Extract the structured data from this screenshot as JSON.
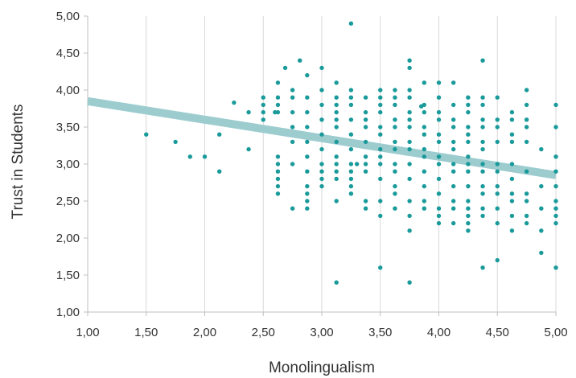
{
  "chart_data": {
    "type": "scatter",
    "title": "",
    "xlabel": "Monolingualism",
    "ylabel": "Trust in Students",
    "xlim": [
      1.0,
      5.0
    ],
    "ylim": [
      1.0,
      5.0
    ],
    "x_ticks": [
      "1,00",
      "1,50",
      "2,00",
      "2,50",
      "3,00",
      "3,50",
      "4,00",
      "4,50",
      "5,00"
    ],
    "y_ticks": [
      "1,00",
      "1,50",
      "2,00",
      "2,50",
      "3,00",
      "3,50",
      "4,00",
      "4,50",
      "5,00"
    ],
    "grid": "vertical",
    "legend": "none",
    "colors": {
      "points": "#1a9a9a",
      "trendline": "#9dcccf",
      "grid": "#d9d9d9",
      "axis": "#bfbfbf"
    },
    "trendline": {
      "x": [
        1.0,
        5.0
      ],
      "y": [
        3.85,
        2.85
      ]
    },
    "points": [
      [
        1.5,
        3.4
      ],
      [
        1.75,
        3.3
      ],
      [
        1.875,
        3.1
      ],
      [
        2.0,
        3.1
      ],
      [
        2.125,
        3.4
      ],
      [
        2.125,
        2.9
      ],
      [
        2.25,
        3.83
      ],
      [
        2.375,
        3.7
      ],
      [
        2.375,
        3.2
      ],
      [
        2.5,
        3.9
      ],
      [
        2.5,
        3.8
      ],
      [
        2.5,
        3.7
      ],
      [
        2.5,
        3.6
      ],
      [
        2.625,
        4.1
      ],
      [
        2.625,
        3.9
      ],
      [
        2.625,
        3.8
      ],
      [
        2.625,
        3.7
      ],
      [
        2.625,
        3.1
      ],
      [
        2.625,
        3.0
      ],
      [
        2.625,
        2.9
      ],
      [
        2.625,
        2.8
      ],
      [
        2.625,
        2.7
      ],
      [
        2.625,
        2.6
      ],
      [
        2.6,
        3.7
      ],
      [
        2.6875,
        4.3
      ],
      [
        2.75,
        4.0
      ],
      [
        2.75,
        3.9
      ],
      [
        2.75,
        3.7
      ],
      [
        2.75,
        3.5
      ],
      [
        2.75,
        3.3
      ],
      [
        2.75,
        3.0
      ],
      [
        2.75,
        2.4
      ],
      [
        2.8125,
        4.4
      ],
      [
        2.875,
        4.2
      ],
      [
        2.875,
        3.9
      ],
      [
        2.875,
        3.7
      ],
      [
        2.875,
        3.5
      ],
      [
        2.875,
        3.3
      ],
      [
        2.875,
        3.1
      ],
      [
        2.875,
        2.9
      ],
      [
        2.875,
        2.7
      ],
      [
        2.875,
        2.6
      ],
      [
        2.875,
        2.5
      ],
      [
        2.875,
        2.4
      ],
      [
        3.0,
        4.3
      ],
      [
        3.0,
        4.0
      ],
      [
        3.0,
        3.8
      ],
      [
        3.0,
        3.6
      ],
      [
        3.0,
        3.4
      ],
      [
        3.0,
        3.2
      ],
      [
        3.0,
        3.0
      ],
      [
        3.0,
        2.9
      ],
      [
        3.0,
        2.8
      ],
      [
        3.0,
        2.7
      ],
      [
        3.125,
        4.1
      ],
      [
        3.125,
        3.9
      ],
      [
        3.125,
        3.8
      ],
      [
        3.125,
        3.7
      ],
      [
        3.125,
        3.6
      ],
      [
        3.125,
        3.5
      ],
      [
        3.125,
        3.3
      ],
      [
        3.125,
        3.1
      ],
      [
        3.125,
        3.0
      ],
      [
        3.125,
        2.9
      ],
      [
        3.125,
        2.8
      ],
      [
        3.125,
        2.5
      ],
      [
        3.125,
        1.4
      ],
      [
        3.25,
        4.9
      ],
      [
        3.25,
        4.0
      ],
      [
        3.25,
        3.9
      ],
      [
        3.25,
        3.8
      ],
      [
        3.25,
        3.6
      ],
      [
        3.25,
        3.4
      ],
      [
        3.25,
        3.2
      ],
      [
        3.25,
        3.0
      ],
      [
        3.25,
        2.9
      ],
      [
        3.25,
        2.8
      ],
      [
        3.25,
        2.7
      ],
      [
        3.25,
        2.6
      ],
      [
        3.3,
        3.0
      ],
      [
        3.375,
        3.9
      ],
      [
        3.375,
        3.7
      ],
      [
        3.375,
        3.6
      ],
      [
        3.375,
        3.5
      ],
      [
        3.375,
        3.3
      ],
      [
        3.375,
        3.1
      ],
      [
        3.375,
        3.0
      ],
      [
        3.375,
        2.9
      ],
      [
        3.375,
        2.5
      ],
      [
        3.375,
        2.4
      ],
      [
        3.5,
        4.0
      ],
      [
        3.5,
        3.9
      ],
      [
        3.5,
        3.8
      ],
      [
        3.5,
        3.7
      ],
      [
        3.5,
        3.5
      ],
      [
        3.5,
        3.4
      ],
      [
        3.5,
        3.2
      ],
      [
        3.5,
        3.1
      ],
      [
        3.5,
        3.0
      ],
      [
        3.5,
        2.8
      ],
      [
        3.5,
        2.5
      ],
      [
        3.5,
        2.3
      ],
      [
        3.5,
        1.6
      ],
      [
        3.625,
        4.0
      ],
      [
        3.625,
        3.9
      ],
      [
        3.625,
        3.8
      ],
      [
        3.625,
        3.6
      ],
      [
        3.625,
        3.5
      ],
      [
        3.625,
        3.3
      ],
      [
        3.625,
        3.2
      ],
      [
        3.625,
        3.0
      ],
      [
        3.625,
        2.9
      ],
      [
        3.625,
        2.7
      ],
      [
        3.625,
        2.6
      ],
      [
        3.625,
        2.4
      ],
      [
        3.75,
        4.4
      ],
      [
        3.75,
        4.3
      ],
      [
        3.75,
        4.0
      ],
      [
        3.75,
        3.9
      ],
      [
        3.75,
        3.7
      ],
      [
        3.75,
        3.6
      ],
      [
        3.75,
        3.5
      ],
      [
        3.75,
        3.3
      ],
      [
        3.75,
        3.2
      ],
      [
        3.75,
        3.0
      ],
      [
        3.75,
        2.8
      ],
      [
        3.75,
        2.5
      ],
      [
        3.75,
        2.3
      ],
      [
        3.75,
        2.1
      ],
      [
        3.75,
        1.4
      ],
      [
        3.85,
        3.78
      ],
      [
        3.875,
        4.1
      ],
      [
        3.875,
        3.8
      ],
      [
        3.875,
        3.7
      ],
      [
        3.875,
        3.5
      ],
      [
        3.875,
        3.4
      ],
      [
        3.875,
        3.2
      ],
      [
        3.875,
        3.1
      ],
      [
        3.875,
        2.9
      ],
      [
        3.875,
        2.7
      ],
      [
        3.875,
        2.5
      ],
      [
        3.875,
        2.4
      ],
      [
        4.0,
        4.1
      ],
      [
        4.0,
        3.9
      ],
      [
        4.0,
        3.7
      ],
      [
        4.0,
        3.6
      ],
      [
        4.0,
        3.4
      ],
      [
        4.0,
        3.3
      ],
      [
        4.0,
        3.1
      ],
      [
        4.0,
        3.0
      ],
      [
        4.0,
        2.8
      ],
      [
        4.0,
        2.6
      ],
      [
        4.0,
        2.4
      ],
      [
        4.0,
        2.3
      ],
      [
        4.0,
        2.2
      ],
      [
        4.125,
        4.1
      ],
      [
        4.125,
        3.8
      ],
      [
        4.125,
        3.6
      ],
      [
        4.125,
        3.5
      ],
      [
        4.125,
        3.3
      ],
      [
        4.125,
        3.2
      ],
      [
        4.125,
        3.0
      ],
      [
        4.125,
        2.9
      ],
      [
        4.125,
        2.7
      ],
      [
        4.125,
        2.5
      ],
      [
        4.125,
        2.4
      ],
      [
        4.125,
        2.2
      ],
      [
        4.25,
        3.9
      ],
      [
        4.25,
        3.8
      ],
      [
        4.25,
        3.7
      ],
      [
        4.25,
        3.5
      ],
      [
        4.25,
        3.4
      ],
      [
        4.25,
        3.3
      ],
      [
        4.25,
        3.1
      ],
      [
        4.25,
        3.0
      ],
      [
        4.25,
        2.9
      ],
      [
        4.25,
        2.7
      ],
      [
        4.25,
        2.5
      ],
      [
        4.25,
        2.4
      ],
      [
        4.25,
        2.3
      ],
      [
        4.25,
        2.2
      ],
      [
        4.25,
        2.1
      ],
      [
        4.375,
        4.4
      ],
      [
        4.375,
        3.9
      ],
      [
        4.375,
        3.8
      ],
      [
        4.375,
        3.6
      ],
      [
        4.375,
        3.5
      ],
      [
        4.375,
        3.3
      ],
      [
        4.375,
        3.2
      ],
      [
        4.375,
        3.0
      ],
      [
        4.375,
        2.9
      ],
      [
        4.375,
        2.7
      ],
      [
        4.375,
        2.6
      ],
      [
        4.375,
        2.4
      ],
      [
        4.375,
        2.3
      ],
      [
        4.375,
        1.6
      ],
      [
        4.5,
        3.9
      ],
      [
        4.5,
        3.6
      ],
      [
        4.5,
        3.5
      ],
      [
        4.5,
        3.3
      ],
      [
        4.5,
        3.0
      ],
      [
        4.5,
        2.9
      ],
      [
        4.5,
        2.7
      ],
      [
        4.5,
        2.6
      ],
      [
        4.5,
        2.4
      ],
      [
        4.5,
        2.2
      ],
      [
        4.5,
        1.7
      ],
      [
        4.625,
        3.7
      ],
      [
        4.625,
        3.6
      ],
      [
        4.625,
        3.4
      ],
      [
        4.625,
        3.3
      ],
      [
        4.625,
        3.0
      ],
      [
        4.625,
        2.8
      ],
      [
        4.625,
        2.6
      ],
      [
        4.625,
        2.5
      ],
      [
        4.625,
        2.3
      ],
      [
        4.625,
        2.1
      ],
      [
        4.75,
        4.0
      ],
      [
        4.75,
        3.8
      ],
      [
        4.75,
        3.6
      ],
      [
        4.75,
        3.5
      ],
      [
        4.75,
        3.3
      ],
      [
        4.75,
        2.9
      ],
      [
        4.75,
        2.6
      ],
      [
        4.75,
        2.5
      ],
      [
        4.75,
        2.3
      ],
      [
        4.75,
        2.2
      ],
      [
        4.875,
        3.2
      ],
      [
        4.875,
        2.7
      ],
      [
        4.875,
        2.4
      ],
      [
        4.875,
        2.1
      ],
      [
        4.875,
        1.8
      ],
      [
        5.0,
        3.8
      ],
      [
        5.0,
        3.5
      ],
      [
        5.0,
        3.1
      ],
      [
        5.0,
        2.9
      ],
      [
        5.0,
        2.7
      ],
      [
        5.0,
        2.5
      ],
      [
        5.0,
        2.4
      ],
      [
        5.0,
        2.3
      ],
      [
        5.0,
        2.2
      ],
      [
        5.0,
        1.6
      ]
    ]
  }
}
